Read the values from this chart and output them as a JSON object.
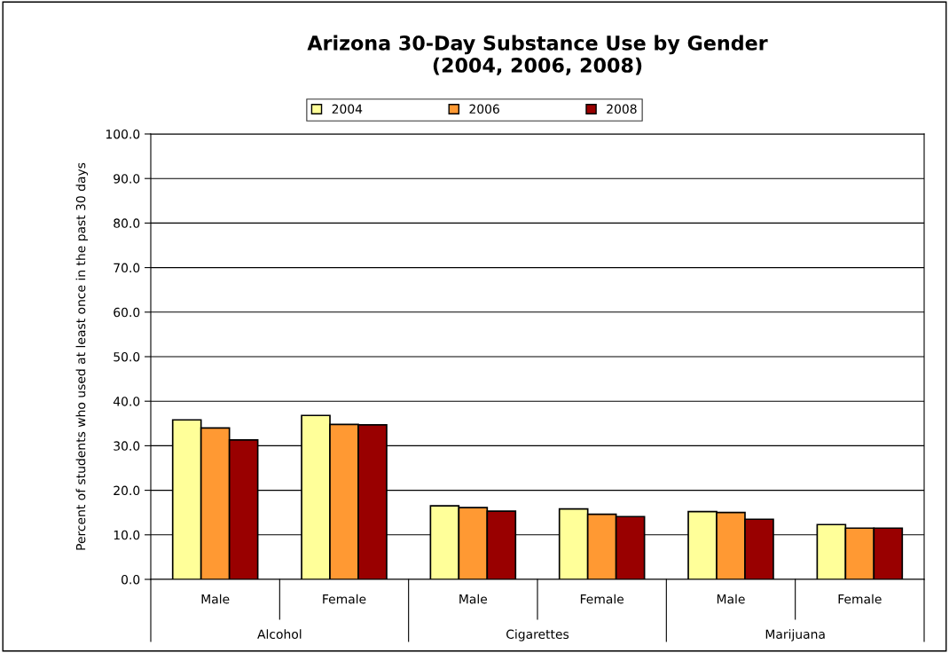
{
  "chart_data": {
    "type": "bar",
    "title": "Arizona 30-Day Substance Use by Gender\n(2004, 2006, 2008)",
    "ylabel": "Percent of students who used at least once in the past 30 days",
    "categories": [
      "Male",
      "Female",
      "Male",
      "Female",
      "Male",
      "Female"
    ],
    "annotations": [
      "Alcohol",
      "Cigarettes",
      "Marijuana"
    ],
    "series": [
      {
        "name": "2004",
        "color": "#ffff99",
        "values": [
          35.8,
          36.8,
          16.5,
          15.8,
          15.2,
          12.3
        ]
      },
      {
        "name": "2006",
        "color": "#ff9933",
        "values": [
          34.0,
          34.8,
          16.1,
          14.6,
          15.0,
          11.5
        ]
      },
      {
        "name": "2008",
        "color": "#990000",
        "values": [
          31.3,
          34.7,
          15.3,
          14.1,
          13.5,
          11.5
        ]
      }
    ],
    "ylim": [
      0,
      100
    ],
    "yticks": [
      {
        "value": 0,
        "label": "0.0"
      },
      {
        "value": 10,
        "label": "10.0"
      },
      {
        "value": 20,
        "label": "20.0"
      },
      {
        "value": 30,
        "label": "30.0"
      },
      {
        "value": 40,
        "label": "40.0"
      },
      {
        "value": 50,
        "label": "50.0"
      },
      {
        "value": 60,
        "label": "60.0"
      },
      {
        "value": 70,
        "label": "70.0"
      },
      {
        "value": 80,
        "label": "80.0"
      },
      {
        "value": 90,
        "label": "90.0"
      },
      {
        "value": 100,
        "label": "100.0"
      }
    ],
    "grid": "y",
    "legend": "top"
  }
}
